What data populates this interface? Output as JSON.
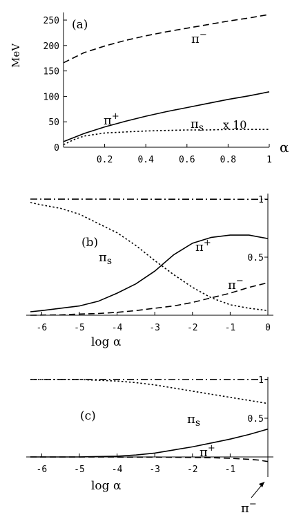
{
  "chart_data": [
    {
      "type": "line",
      "panel_label": "(a)",
      "ylabel": "MeV",
      "xlabel": "α",
      "xlim": [
        0,
        1
      ],
      "ylim": [
        0,
        265
      ],
      "x_ticks": [
        "0.2",
        "0.4",
        "0.6",
        "0.8",
        "1"
      ],
      "y_ticks": [
        "0",
        "50",
        "100",
        "150",
        "200",
        "250"
      ],
      "series": [
        {
          "name": "π−",
          "style": "dashed",
          "x": [
            0,
            0.1,
            0.2,
            0.3,
            0.4,
            0.5,
            0.6,
            0.7,
            0.8,
            0.9,
            1.0
          ],
          "y": [
            166,
            186,
            199,
            210,
            219,
            227,
            234,
            241,
            248,
            254,
            261
          ]
        },
        {
          "name": "π+",
          "style": "solid",
          "x": [
            0,
            0.1,
            0.2,
            0.3,
            0.4,
            0.5,
            0.6,
            0.7,
            0.8,
            0.9,
            1.0
          ],
          "y": [
            11,
            27,
            40,
            51,
            61,
            70,
            78,
            86,
            94,
            101,
            109
          ]
        },
        {
          "name": "πs",
          "annotation": "x 10",
          "style": "dotted",
          "x": [
            0,
            0.05,
            0.1,
            0.2,
            0.3,
            0.4,
            0.5,
            0.6,
            0.7,
            0.8,
            0.9,
            1.0
          ],
          "y": [
            5,
            15,
            22,
            28,
            30,
            32,
            33,
            34,
            34,
            35,
            35,
            35
          ]
        }
      ],
      "labels": {
        "pi_minus": "π",
        "pi_minus_sup": "−",
        "pi_plus": "π",
        "pi_plus_sup": "+",
        "pi_s": "π",
        "pi_s_sub": "s",
        "times10": "x 10"
      }
    },
    {
      "type": "line",
      "panel_label": "(b)",
      "xlabel": "log α",
      "xlim": [
        -6.3,
        0
      ],
      "ylim": [
        0,
        1.05
      ],
      "x_ticks": [
        "-6",
        "-5",
        "-4",
        "-3",
        "-2",
        "-1",
        "0"
      ],
      "y_ticks": [
        "0.5",
        "1"
      ],
      "series": [
        {
          "name": "",
          "style": "dash-dot",
          "x": [
            -6.3,
            0
          ],
          "y": [
            1.0,
            0.998
          ]
        },
        {
          "name": "πs",
          "style": "dotted",
          "x": [
            -6.3,
            -6,
            -5.5,
            -5,
            -4.5,
            -4,
            -3.5,
            -3,
            -2.5,
            -2,
            -1.5,
            -1,
            -0.5,
            0
          ],
          "y": [
            0.97,
            0.95,
            0.92,
            0.87,
            0.79,
            0.71,
            0.6,
            0.47,
            0.35,
            0.24,
            0.15,
            0.09,
            0.06,
            0.04
          ]
        },
        {
          "name": "π+",
          "style": "solid",
          "x": [
            -6.3,
            -6,
            -5.5,
            -5,
            -4.5,
            -4,
            -3.5,
            -3,
            -2.5,
            -2,
            -1.5,
            -1,
            -0.5,
            0
          ],
          "y": [
            0.03,
            0.04,
            0.06,
            0.08,
            0.12,
            0.19,
            0.27,
            0.38,
            0.52,
            0.62,
            0.67,
            0.69,
            0.69,
            0.66
          ]
        },
        {
          "name": "π−",
          "style": "dashed",
          "x": [
            -6.3,
            -5.5,
            -5,
            -4.5,
            -4,
            -3.5,
            -3,
            -2.5,
            -2,
            -1.5,
            -1,
            -0.5,
            0
          ],
          "y": [
            0.0,
            0.003,
            0.01,
            0.015,
            0.025,
            0.04,
            0.06,
            0.08,
            0.11,
            0.15,
            0.19,
            0.24,
            0.28
          ]
        }
      ],
      "labels": {
        "pi_s": "π",
        "pi_s_sub": "s",
        "pi_plus": "π",
        "pi_plus_sup": "+",
        "pi_minus": "π",
        "pi_minus_sup": "−"
      }
    },
    {
      "type": "line",
      "panel_label": "(c)",
      "xlabel": "log α",
      "xlim": [
        -6.3,
        0
      ],
      "ylim": [
        -0.15,
        1.05
      ],
      "x_ticks": [
        "-6",
        "-5",
        "-4",
        "-3",
        "-2",
        "-1"
      ],
      "y_ticks": [
        "0.5",
        "1"
      ],
      "series": [
        {
          "name": "",
          "style": "dash-dot",
          "x": [
            -6.3,
            0
          ],
          "y": [
            1.0,
            0.998
          ]
        },
        {
          "name": "πs",
          "style": "dotted",
          "x": [
            -6.3,
            -5,
            -4.5,
            -4,
            -3.5,
            -3,
            -2.5,
            -2,
            -1.5,
            -1,
            -0.5,
            0
          ],
          "y": [
            1.0,
            1.0,
            0.99,
            0.98,
            0.96,
            0.93,
            0.89,
            0.85,
            0.81,
            0.77,
            0.73,
            0.69
          ]
        },
        {
          "name": "π+",
          "style": "solid",
          "x": [
            -6.3,
            -5,
            -4.5,
            -4,
            -3.5,
            -3,
            -2.5,
            -2,
            -1.5,
            -1,
            -0.5,
            0
          ],
          "y": [
            0.0,
            0.0,
            0.005,
            0.01,
            0.025,
            0.05,
            0.09,
            0.13,
            0.18,
            0.23,
            0.29,
            0.36
          ]
        },
        {
          "name": "π−",
          "style": "dashed",
          "x": [
            -6.3,
            -3,
            -2,
            -1.5,
            -1,
            -0.5,
            -0.25,
            0
          ],
          "y": [
            0.0,
            -0.002,
            -0.006,
            -0.01,
            -0.018,
            -0.03,
            -0.04,
            -0.06
          ]
        }
      ],
      "labels": {
        "pi_s": "π",
        "pi_s_sub": "s",
        "pi_plus": "π",
        "pi_plus_sup": "+",
        "pi_minus": "π",
        "pi_minus_sup": "−"
      }
    }
  ]
}
